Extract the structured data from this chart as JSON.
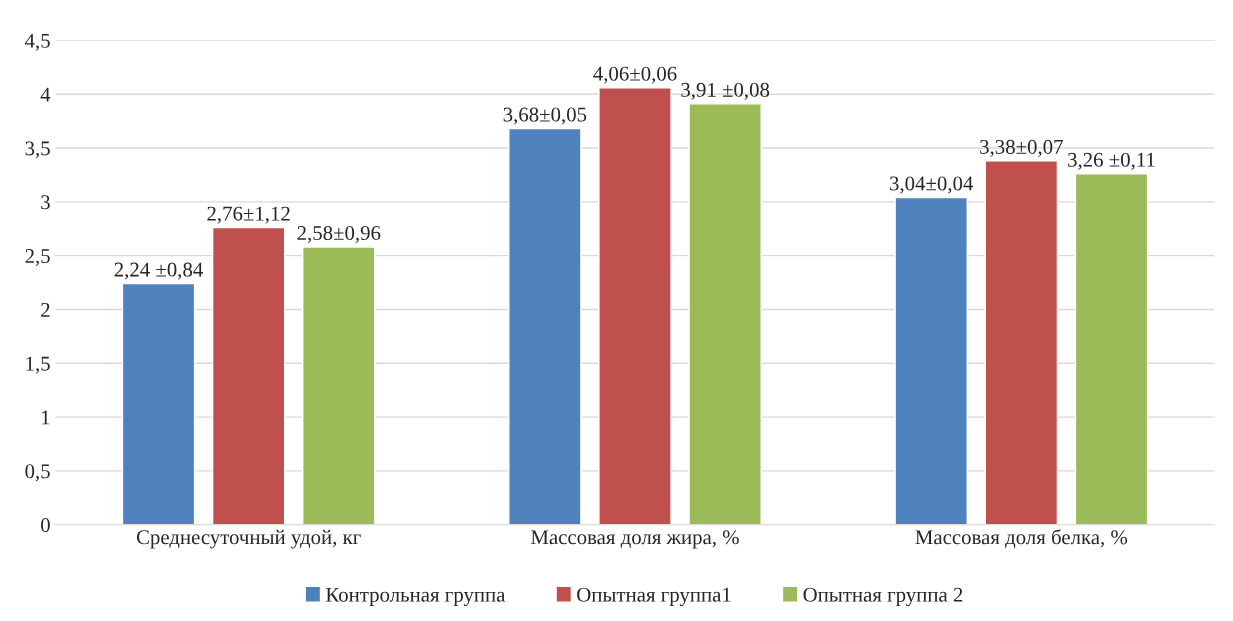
{
  "chart_data": {
    "type": "bar",
    "categories": [
      "Среднесуточный удой, кг",
      "Массовая доля жира, %",
      "Массовая доля белка, %"
    ],
    "series": [
      {
        "name": "Контрольная группа",
        "color": "#4f81bd",
        "values": [
          2.24,
          3.68,
          3.04
        ],
        "value_labels": [
          "2,24 ±0,84",
          "3,68±0,05",
          "3,04±0,04"
        ]
      },
      {
        "name": "Опытная группа1",
        "color": "#c0504d",
        "values": [
          2.76,
          4.06,
          3.38
        ],
        "value_labels": [
          "2,76±1,12",
          "4,06±0,06",
          "3,38±0,07"
        ]
      },
      {
        "name": "Опытная группа 2",
        "color": "#9bbb59",
        "values": [
          2.58,
          3.91,
          3.26
        ],
        "value_labels": [
          "2,58±0,96",
          "3,91 ±0,08",
          "3,26 ±0,11"
        ]
      }
    ],
    "ylim": [
      0,
      4.5
    ],
    "yticks": [
      0,
      {
        "value": 0.5,
        "label": "0,5"
      },
      1,
      {
        "value": 1.5,
        "label": "1,5"
      },
      2,
      {
        "value": 2.5,
        "label": "2,5"
      },
      3,
      {
        "value": 3.5,
        "label": "3,5"
      },
      4,
      {
        "value": 4.5,
        "label": "4,5"
      }
    ],
    "grid": "y",
    "legend": "bottom"
  }
}
